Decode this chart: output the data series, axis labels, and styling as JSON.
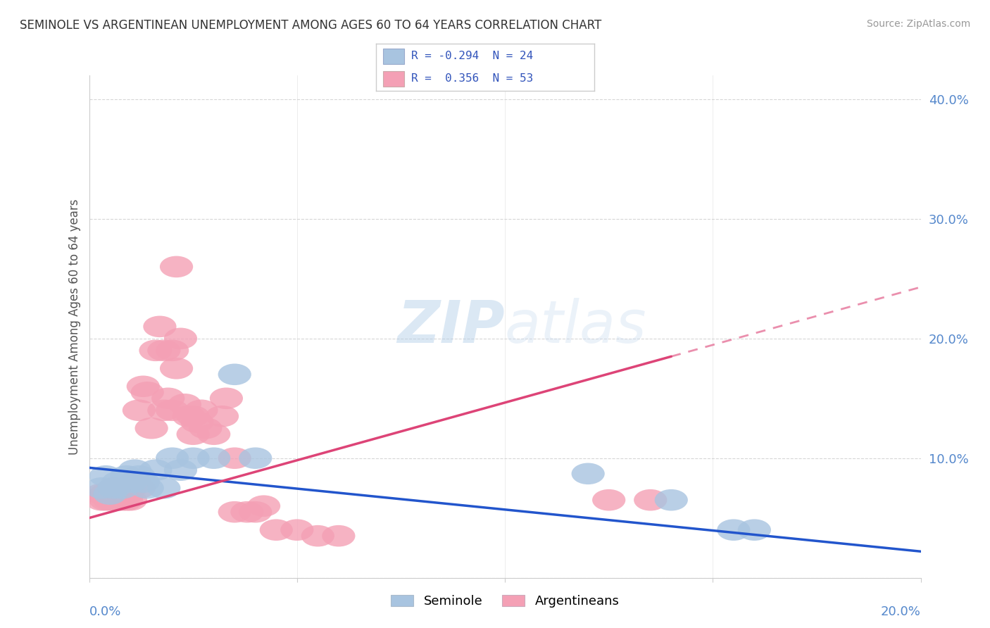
{
  "title": "SEMINOLE VS ARGENTINEAN UNEMPLOYMENT AMONG AGES 60 TO 64 YEARS CORRELATION CHART",
  "source": "Source: ZipAtlas.com",
  "ylabel": "Unemployment Among Ages 60 to 64 years",
  "xlim": [
    0.0,
    0.2
  ],
  "ylim": [
    0.0,
    0.42
  ],
  "yticks": [
    0.0,
    0.1,
    0.2,
    0.3,
    0.4
  ],
  "ytick_labels": [
    "",
    "10.0%",
    "20.0%",
    "30.0%",
    "40.0%"
  ],
  "xtick_labels": [
    "0.0%",
    "",
    "",
    "",
    "20.0%"
  ],
  "legend_r_seminole": "R = -0.294",
  "legend_n_seminole": "N = 24",
  "legend_r_argentinean": "R =  0.356",
  "legend_n_argentinean": "N = 53",
  "seminole_color": "#a8c4e0",
  "argentinean_color": "#f4a0b5",
  "line_seminole_color": "#2255cc",
  "line_argentinean_color": "#dd4477",
  "background_color": "#ffffff",
  "seminole_scatter": [
    [
      0.003,
      0.075
    ],
    [
      0.004,
      0.085
    ],
    [
      0.005,
      0.07
    ],
    [
      0.006,
      0.075
    ],
    [
      0.007,
      0.08
    ],
    [
      0.008,
      0.075
    ],
    [
      0.009,
      0.085
    ],
    [
      0.01,
      0.08
    ],
    [
      0.011,
      0.09
    ],
    [
      0.012,
      0.085
    ],
    [
      0.013,
      0.08
    ],
    [
      0.014,
      0.075
    ],
    [
      0.016,
      0.09
    ],
    [
      0.018,
      0.075
    ],
    [
      0.02,
      0.1
    ],
    [
      0.022,
      0.09
    ],
    [
      0.025,
      0.1
    ],
    [
      0.03,
      0.1
    ],
    [
      0.035,
      0.17
    ],
    [
      0.04,
      0.1
    ],
    [
      0.12,
      0.087
    ],
    [
      0.14,
      0.065
    ],
    [
      0.155,
      0.04
    ],
    [
      0.16,
      0.04
    ]
  ],
  "argentinean_scatter": [
    [
      0.003,
      0.065
    ],
    [
      0.003,
      0.07
    ],
    [
      0.004,
      0.065
    ],
    [
      0.004,
      0.07
    ],
    [
      0.005,
      0.07
    ],
    [
      0.005,
      0.065
    ],
    [
      0.006,
      0.065
    ],
    [
      0.006,
      0.075
    ],
    [
      0.007,
      0.065
    ],
    [
      0.007,
      0.07
    ],
    [
      0.008,
      0.07
    ],
    [
      0.008,
      0.065
    ],
    [
      0.009,
      0.065
    ],
    [
      0.009,
      0.07
    ],
    [
      0.01,
      0.075
    ],
    [
      0.01,
      0.065
    ],
    [
      0.011,
      0.08
    ],
    [
      0.012,
      0.075
    ],
    [
      0.012,
      0.14
    ],
    [
      0.013,
      0.16
    ],
    [
      0.014,
      0.155
    ],
    [
      0.015,
      0.125
    ],
    [
      0.016,
      0.19
    ],
    [
      0.017,
      0.21
    ],
    [
      0.018,
      0.14
    ],
    [
      0.018,
      0.19
    ],
    [
      0.019,
      0.15
    ],
    [
      0.02,
      0.14
    ],
    [
      0.02,
      0.19
    ],
    [
      0.021,
      0.175
    ],
    [
      0.021,
      0.26
    ],
    [
      0.022,
      0.2
    ],
    [
      0.023,
      0.145
    ],
    [
      0.024,
      0.135
    ],
    [
      0.025,
      0.135
    ],
    [
      0.025,
      0.12
    ],
    [
      0.026,
      0.13
    ],
    [
      0.027,
      0.14
    ],
    [
      0.028,
      0.125
    ],
    [
      0.03,
      0.12
    ],
    [
      0.032,
      0.135
    ],
    [
      0.033,
      0.15
    ],
    [
      0.035,
      0.1
    ],
    [
      0.035,
      0.055
    ],
    [
      0.038,
      0.055
    ],
    [
      0.04,
      0.055
    ],
    [
      0.042,
      0.06
    ],
    [
      0.045,
      0.04
    ],
    [
      0.05,
      0.04
    ],
    [
      0.055,
      0.035
    ],
    [
      0.06,
      0.035
    ],
    [
      0.125,
      0.065
    ],
    [
      0.135,
      0.065
    ]
  ],
  "seminole_line": {
    "x0": 0.0,
    "x1": 0.2,
    "y0": 0.092,
    "y1": 0.022
  },
  "argentinean_line_solid": {
    "x0": 0.0,
    "x1": 0.14,
    "y0": 0.05,
    "y1": 0.185
  },
  "argentinean_line_dashed": {
    "x0": 0.14,
    "x1": 0.2,
    "y0": 0.185,
    "y1": 0.243
  }
}
